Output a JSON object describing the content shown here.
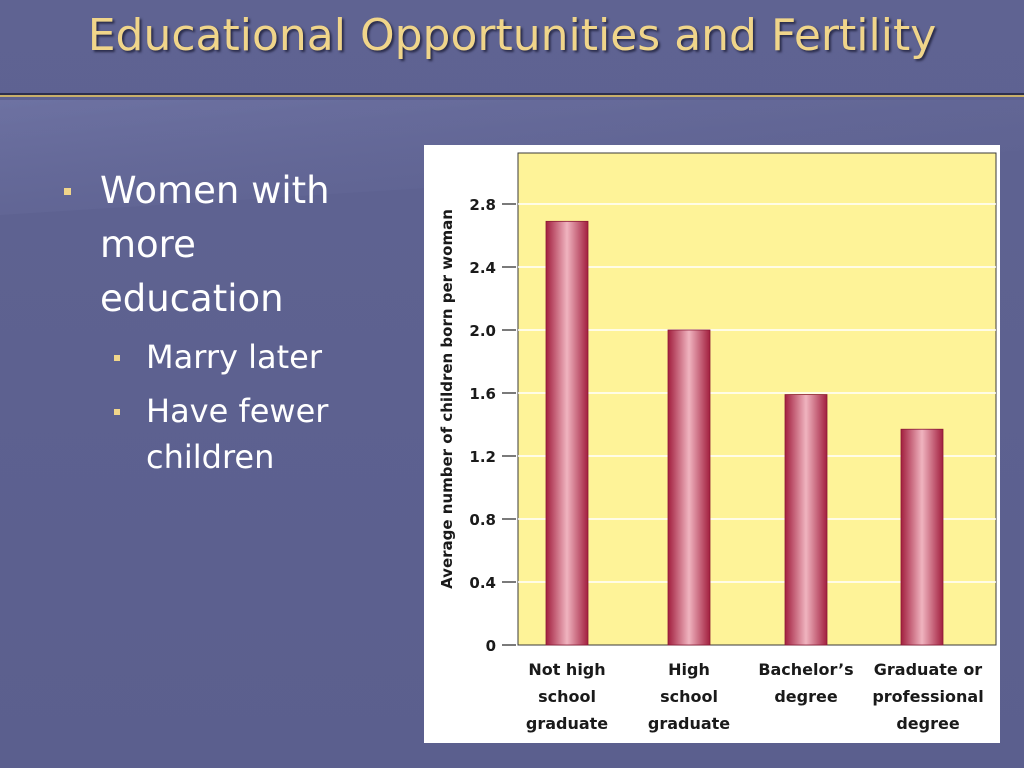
{
  "slide": {
    "title": "Educational Opportunities and Fertility",
    "bullets": [
      {
        "text": "Women with more education",
        "lines": [
          "Women with",
          "more",
          "education"
        ],
        "children": [
          {
            "text": "Marry later",
            "lines": [
              "Marry later"
            ]
          },
          {
            "text": "Have fewer children",
            "lines": [
              "Have fewer",
              "children"
            ]
          }
        ]
      }
    ]
  },
  "colors": {
    "background": "#5d6190",
    "title": "#f0d58a",
    "plot_background": "#fef398",
    "bar": "#b83350"
  },
  "chart_data": {
    "type": "bar",
    "title": "",
    "xlabel": "",
    "ylabel": "Average number of children born per woman",
    "categories": [
      "Not high school graduate",
      "High school graduate",
      "Bachelor’s degree",
      "Graduate or professional degree"
    ],
    "category_lines": [
      [
        "Not high",
        "school",
        "graduate"
      ],
      [
        "High",
        "school",
        "graduate"
      ],
      [
        "Bachelor’s",
        "degree"
      ],
      [
        "Graduate or",
        "professional",
        "degree"
      ]
    ],
    "values": [
      2.69,
      2.0,
      1.59,
      1.37
    ],
    "ylim": [
      0,
      3.0
    ],
    "yticks": [
      0,
      0.4,
      0.8,
      1.2,
      1.6,
      2.0,
      2.4,
      2.8
    ],
    "ytick_labels": [
      "0",
      "0.4",
      "0.8",
      "1.2",
      "1.6",
      "2.0",
      "2.4",
      "2.8"
    ],
    "grid": true,
    "legend": "none"
  }
}
